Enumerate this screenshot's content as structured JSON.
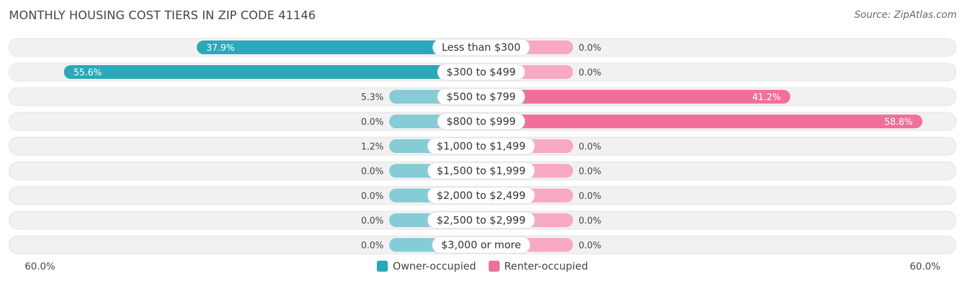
{
  "header": {
    "title": "MONTHLY HOUSING COST TIERS IN ZIP CODE 41146",
    "source": "Source: ZipAtlas.com"
  },
  "colors": {
    "owner": "#2ba8b9",
    "owner_light": "#86ccd6",
    "renter": "#f0709a",
    "renter_light": "#f7a9c2",
    "row_bg": "#f1f1f1"
  },
  "axis": {
    "left_label": "60.0%",
    "right_label": "60.0%"
  },
  "legend": {
    "owner_label": "Owner-occupied",
    "renter_label": "Renter-occupied"
  },
  "chart_data": {
    "type": "bar",
    "title": "MONTHLY HOUSING COST TIERS IN ZIP CODE 41146",
    "categories": [
      "Less than $300",
      "$300 to $499",
      "$500 to $799",
      "$800 to $999",
      "$1,000 to $1,499",
      "$1,500 to $1,999",
      "$2,000 to $2,499",
      "$2,500 to $2,999",
      "$3,000 or more"
    ],
    "series": [
      {
        "name": "Owner-occupied",
        "values": [
          37.9,
          55.6,
          5.3,
          0.0,
          1.2,
          0.0,
          0.0,
          0.0,
          0.0
        ]
      },
      {
        "name": "Renter-occupied",
        "values": [
          0.0,
          0.0,
          41.2,
          58.8,
          0.0,
          0.0,
          0.0,
          0.0,
          0.0
        ]
      }
    ],
    "value_labels_owner": [
      "37.9%",
      "55.6%",
      "5.3%",
      "0.0%",
      "1.2%",
      "0.0%",
      "0.0%",
      "0.0%",
      "0.0%"
    ],
    "value_labels_renter": [
      "0.0%",
      "0.0%",
      "41.2%",
      "58.8%",
      "0.0%",
      "0.0%",
      "0.0%",
      "0.0%",
      "0.0%"
    ],
    "xlim": [
      -60,
      60
    ],
    "legend_position": "bottom-center",
    "grid": false
  }
}
